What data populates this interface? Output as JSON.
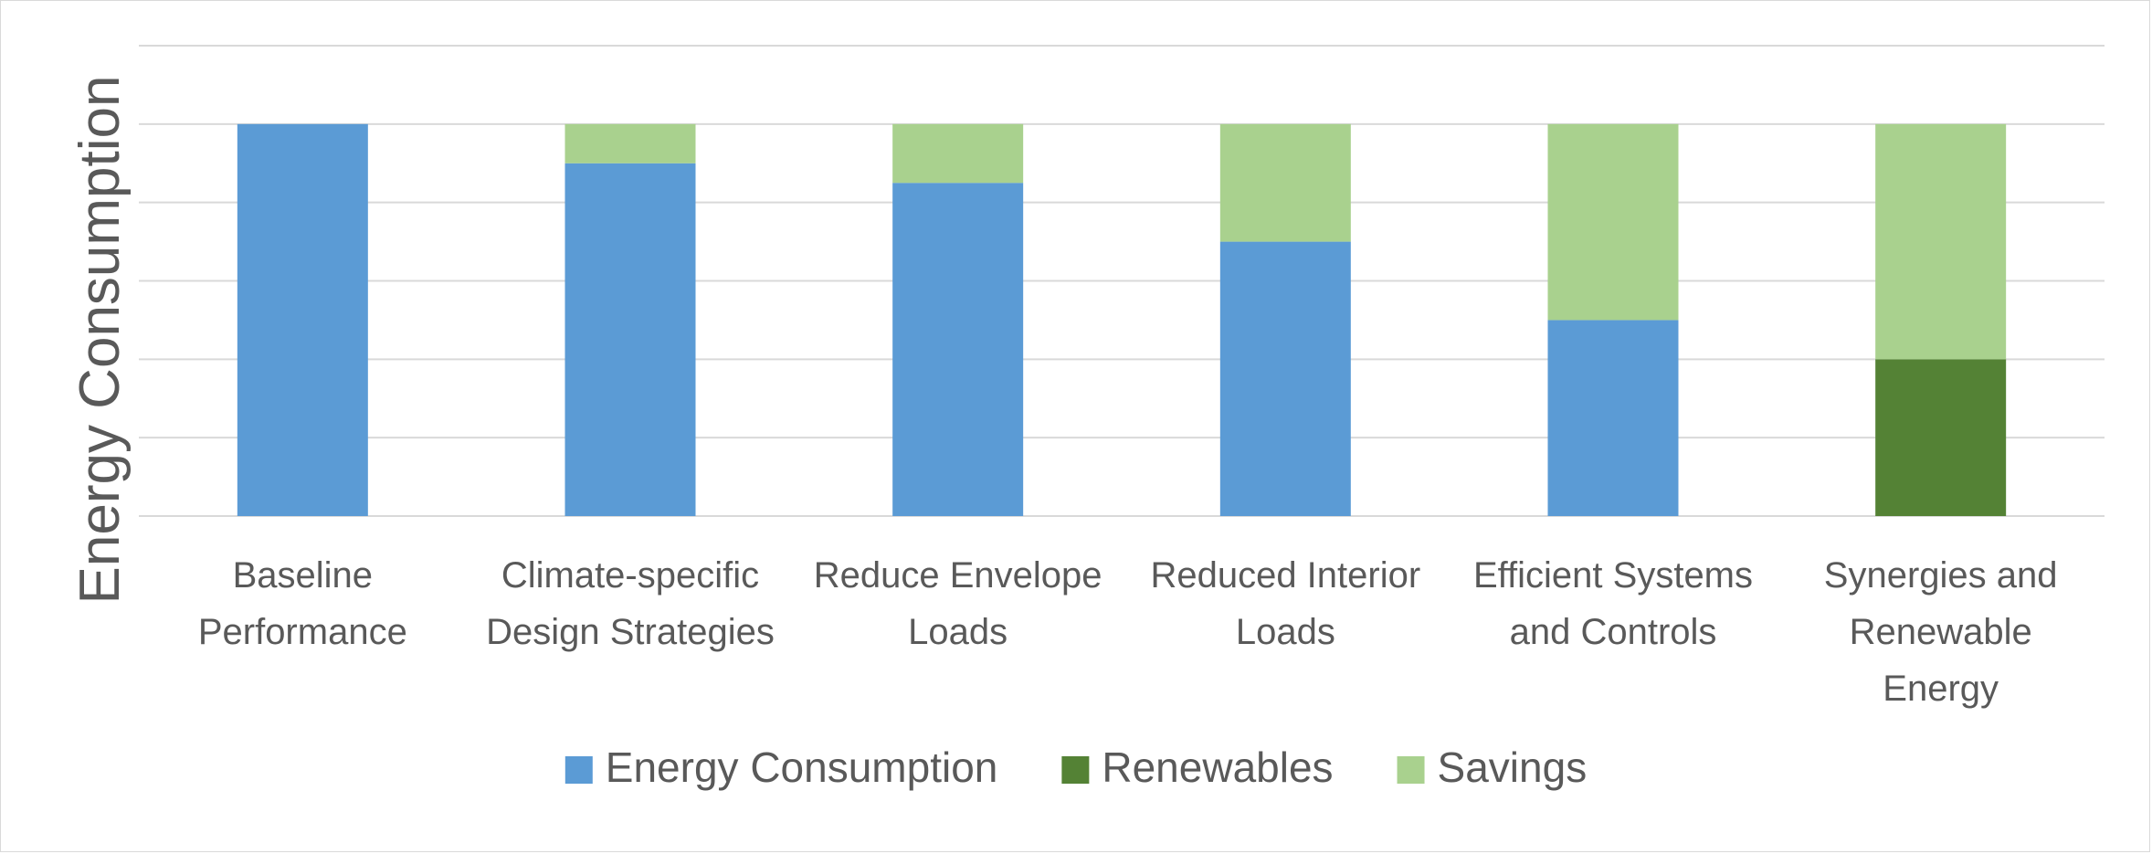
{
  "chart_data": {
    "type": "bar",
    "stacked": true,
    "title": "",
    "xlabel": "",
    "ylabel": "Energy Consumption",
    "ylim": [
      0,
      6
    ],
    "y_tick_labels_shown": false,
    "grid": true,
    "legend_position": "bottom",
    "categories": [
      [
        "Baseline",
        "Performance"
      ],
      [
        "Climate-specific",
        "Design Strategies"
      ],
      [
        "Reduce Envelope",
        "Loads"
      ],
      [
        "Reduced Interior",
        "Loads"
      ],
      [
        "Efficient Systems",
        "and Controls"
      ],
      [
        "Synergies and",
        "Renewable",
        "Energy"
      ]
    ],
    "series": [
      {
        "name": "Energy Consumption",
        "color": "#5b9bd5",
        "values": [
          5.0,
          4.5,
          4.25,
          3.5,
          2.5,
          0
        ]
      },
      {
        "name": "Renewables",
        "color": "#548235",
        "values": [
          0,
          0,
          0,
          0,
          0,
          2.0
        ]
      },
      {
        "name": "Savings",
        "color": "#a9d18e",
        "values": [
          0,
          0.5,
          0.75,
          1.5,
          2.5,
          3.0
        ]
      }
    ]
  }
}
